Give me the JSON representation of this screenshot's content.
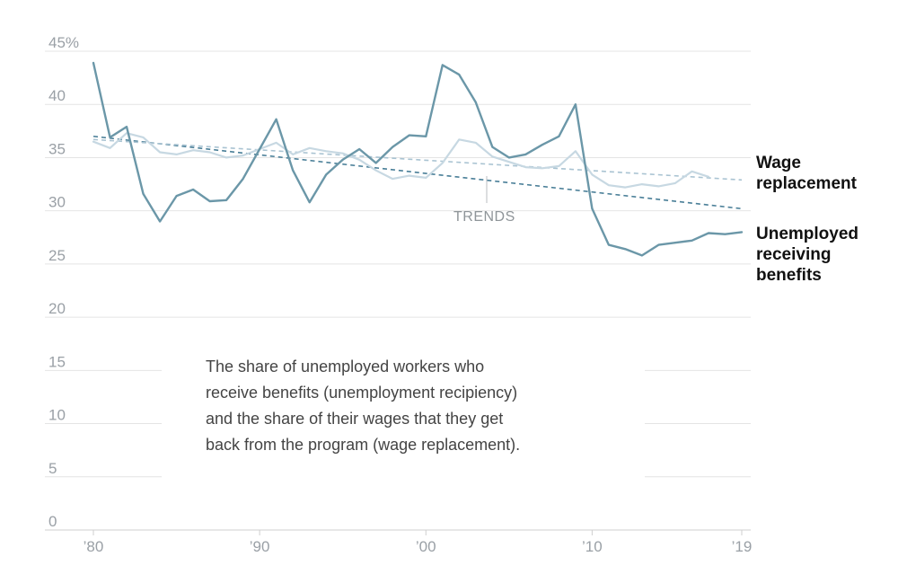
{
  "chart_data": {
    "type": "line",
    "title": "",
    "xlabel": "",
    "ylabel": "",
    "ylim": [
      0,
      45
    ],
    "xlim": [
      1980,
      2019
    ],
    "grid": true,
    "y_ticks": [
      {
        "value": 0,
        "label": "0"
      },
      {
        "value": 5,
        "label": "5"
      },
      {
        "value": 10,
        "label": "10"
      },
      {
        "value": 15,
        "label": "15"
      },
      {
        "value": 20,
        "label": "20"
      },
      {
        "value": 25,
        "label": "25"
      },
      {
        "value": 30,
        "label": "30"
      },
      {
        "value": 35,
        "label": "35"
      },
      {
        "value": 40,
        "label": "40"
      },
      {
        "value": 45,
        "label": "45%"
      }
    ],
    "x_ticks": [
      {
        "value": 1980,
        "label": "’80"
      },
      {
        "value": 1990,
        "label": "’90"
      },
      {
        "value": 2000,
        "label": "’00"
      },
      {
        "value": 2010,
        "label": "’10"
      },
      {
        "value": 2019,
        "label": "’19"
      }
    ],
    "x": [
      1980,
      1981,
      1982,
      1983,
      1984,
      1985,
      1986,
      1987,
      1988,
      1989,
      1990,
      1991,
      1992,
      1993,
      1994,
      1995,
      1996,
      1997,
      1998,
      1999,
      2000,
      2001,
      2002,
      2003,
      2004,
      2005,
      2006,
      2007,
      2008,
      2009,
      2010,
      2011,
      2012,
      2013,
      2014,
      2015,
      2016,
      2017,
      2018,
      2019
    ],
    "series": [
      {
        "name": "Unemployed receiving benefits",
        "color": "#6b97a8",
        "values": [
          43.9,
          36.9,
          37.9,
          31.6,
          29.0,
          31.4,
          32.0,
          30.9,
          31.0,
          33.0,
          35.8,
          38.6,
          33.8,
          30.8,
          33.4,
          34.8,
          35.8,
          34.5,
          36.0,
          37.1,
          37.0,
          43.7,
          42.8,
          40.2,
          36.0,
          35.0,
          35.3,
          36.2,
          37.0,
          40.0,
          30.2,
          26.8,
          26.4,
          25.8,
          26.8,
          27.0,
          27.2,
          27.9,
          27.8,
          28.0
        ]
      },
      {
        "name": "Wage replacement",
        "color": "#c7d8e2",
        "values": [
          36.5,
          35.9,
          37.3,
          36.9,
          35.5,
          35.3,
          35.7,
          35.5,
          35.0,
          35.2,
          35.8,
          36.4,
          35.3,
          35.9,
          35.6,
          35.4,
          34.8,
          33.8,
          33.0,
          33.3,
          33.1,
          34.5,
          36.7,
          36.4,
          35.1,
          34.6,
          34.1,
          34.0,
          34.2,
          35.6,
          33.4,
          32.4,
          32.2,
          32.5,
          32.3,
          32.6,
          33.7,
          33.2,
          null,
          null
        ]
      }
    ],
    "trends": [
      {
        "name": "Unemployed receiving benefits",
        "start": [
          1980,
          37.0
        ],
        "end": [
          2019,
          30.2
        ],
        "color": "#4a7f98"
      },
      {
        "name": "Wage replacement",
        "start": [
          1980,
          36.7
        ],
        "end": [
          2019,
          32.9
        ],
        "color": "#a9c3d2"
      }
    ],
    "labels": {
      "trends": "TRENDS",
      "wage_replacement": [
        "Wage",
        "replacement"
      ],
      "unemployed_receiving": [
        "Unemployed",
        "receiving",
        "benefits"
      ]
    },
    "note": [
      "The share of unemployed workers who",
      "receive benefits (unemployment recipiency)",
      "and the share of their wages that they get",
      "back from the program (wage replacement)."
    ]
  }
}
